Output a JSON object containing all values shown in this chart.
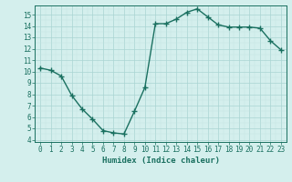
{
  "x": [
    0,
    1,
    2,
    3,
    4,
    5,
    6,
    7,
    8,
    9,
    10,
    11,
    12,
    13,
    14,
    15,
    16,
    17,
    18,
    19,
    20,
    21,
    22,
    23
  ],
  "y": [
    10.3,
    10.1,
    9.6,
    7.9,
    6.7,
    5.8,
    4.8,
    4.6,
    4.5,
    6.5,
    8.6,
    14.2,
    14.2,
    14.6,
    15.2,
    15.5,
    14.8,
    14.1,
    13.9,
    13.9,
    13.9,
    13.8,
    12.7,
    11.9
  ],
  "line_color": "#1a7060",
  "marker": "+",
  "marker_size": 4,
  "bg_color": "#d4efed",
  "grid_color_major": "#aad4d2",
  "grid_color_minor": "#c2e4e2",
  "xlabel": "Humidex (Indice chaleur)",
  "xlim_left": -0.5,
  "xlim_right": 23.5,
  "ylim_bottom": 3.8,
  "ylim_top": 15.8,
  "yticks": [
    4,
    5,
    6,
    7,
    8,
    9,
    10,
    11,
    12,
    13,
    14,
    15
  ],
  "xticks": [
    0,
    1,
    2,
    3,
    4,
    5,
    6,
    7,
    8,
    9,
    10,
    11,
    12,
    13,
    14,
    15,
    16,
    17,
    18,
    19,
    20,
    21,
    22,
    23
  ],
  "font_color": "#1a7060",
  "linewidth": 1.0,
  "tick_fontsize": 5.5,
  "xlabel_fontsize": 6.5
}
